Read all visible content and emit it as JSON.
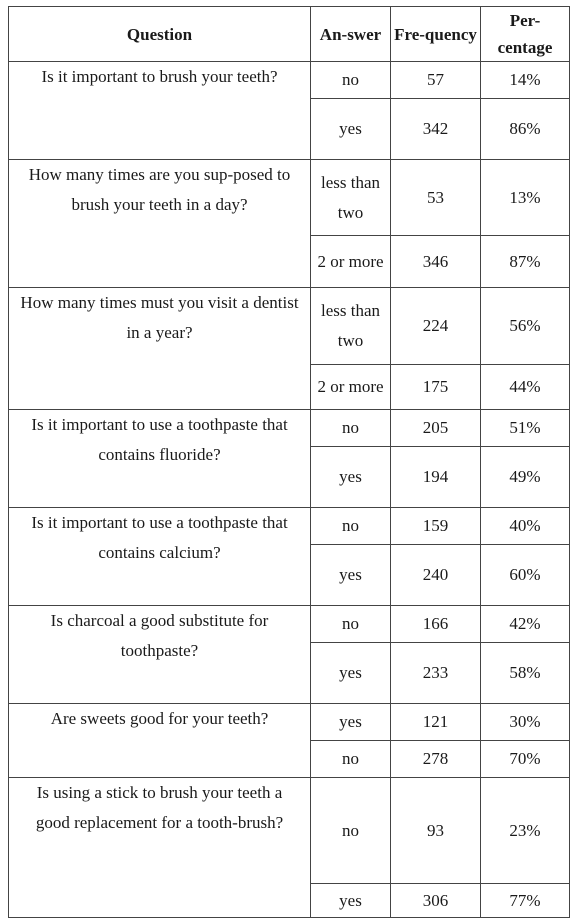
{
  "headers": {
    "question": "Question",
    "answer": "An-swer",
    "frequency": "Fre-quency",
    "percentage": "Per-centage"
  },
  "rows": [
    {
      "question": "Is it important to brush your teeth?",
      "answers": [
        {
          "answer": "no",
          "frequency": "57",
          "percentage": "14%"
        },
        {
          "answer": "yes",
          "frequency": "342",
          "percentage": "86%"
        }
      ]
    },
    {
      "question": "How many times are you sup-posed to brush your teeth in a day?",
      "answers": [
        {
          "answer": "less than two",
          "frequency": "53",
          "percentage": "13%"
        },
        {
          "answer": "2 or more",
          "frequency": "346",
          "percentage": "87%"
        }
      ]
    },
    {
      "question": "How many times must you visit a dentist in a year?",
      "answers": [
        {
          "answer": "less than two",
          "frequency": "224",
          "percentage": "56%"
        },
        {
          "answer": "2 or more",
          "frequency": "175",
          "percentage": "44%"
        }
      ]
    },
    {
      "question": "Is it important to use a toothpaste that contains fluoride?",
      "answers": [
        {
          "answer": "no",
          "frequency": "205",
          "percentage": "51%"
        },
        {
          "answer": "yes",
          "frequency": "194",
          "percentage": "49%"
        }
      ]
    },
    {
      "question": "Is it important to use a toothpaste that contains calcium?",
      "answers": [
        {
          "answer": "no",
          "frequency": "159",
          "percentage": "40%"
        },
        {
          "answer": "yes",
          "frequency": "240",
          "percentage": "60%"
        }
      ]
    },
    {
      "question": "Is charcoal a good substitute for toothpaste?",
      "answers": [
        {
          "answer": "no",
          "frequency": "166",
          "percentage": "42%"
        },
        {
          "answer": "yes",
          "frequency": "233",
          "percentage": "58%"
        }
      ]
    },
    {
      "question": "Are sweets good for your teeth?",
      "answers": [
        {
          "answer": "yes",
          "frequency": "121",
          "percentage": "30%"
        },
        {
          "answer": "no",
          "frequency": "278",
          "percentage": "70%"
        }
      ]
    },
    {
      "question": "Is using a stick to brush your teeth a good replacement for a tooth-brush?",
      "answers": [
        {
          "answer": "no",
          "frequency": "93",
          "percentage": "23%"
        },
        {
          "answer": "yes",
          "frequency": "306",
          "percentage": "77%"
        }
      ]
    }
  ]
}
